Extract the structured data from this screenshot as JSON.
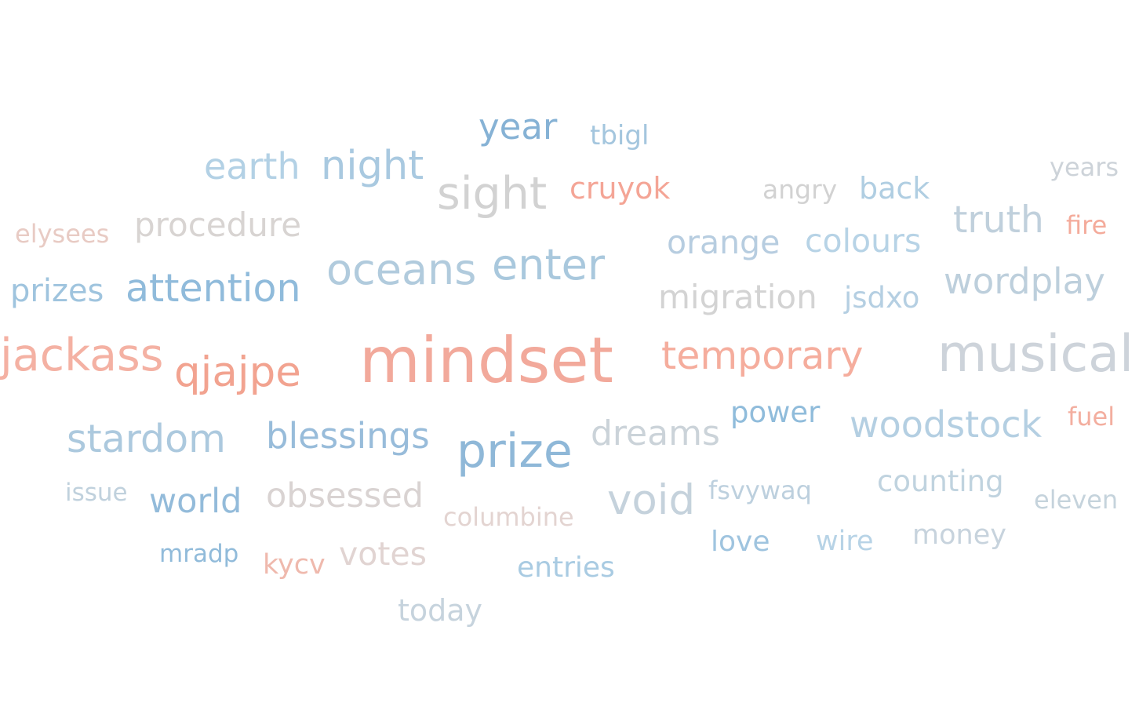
{
  "chart_data": {
    "type": "wordcloud",
    "title": "",
    "words": [
      {
        "text": "mindset",
        "weight": 100,
        "color": "#f2a99b"
      },
      {
        "text": "musical",
        "weight": 82,
        "color": "#cdd3da"
      },
      {
        "text": "prize",
        "weight": 75,
        "color": "#8fb8d8"
      },
      {
        "text": "sight",
        "weight": 72,
        "color": "#d2d2d2"
      },
      {
        "text": "jackass",
        "weight": 72,
        "color": "#f4b1a3"
      },
      {
        "text": "oceans",
        "weight": 68,
        "color": "#b1cbdd"
      },
      {
        "text": "enter",
        "weight": 68,
        "color": "#a9c8dd"
      },
      {
        "text": "void",
        "weight": 66,
        "color": "#c5d2dc"
      },
      {
        "text": "qjajpe",
        "weight": 66,
        "color": "#f2a390"
      },
      {
        "text": "night",
        "weight": 64,
        "color": "#a9c9e0"
      },
      {
        "text": "attention",
        "weight": 62,
        "color": "#90bbdb"
      },
      {
        "text": "stardom",
        "weight": 61,
        "color": "#acc9de"
      },
      {
        "text": "temporary",
        "weight": 61,
        "color": "#f5ad9d"
      },
      {
        "text": "truth",
        "weight": 59,
        "color": "#c0d0dc"
      },
      {
        "text": "earth",
        "weight": 58,
        "color": "#b3d1e5"
      },
      {
        "text": "woodstock",
        "weight": 58,
        "color": "#b4cfe2"
      },
      {
        "text": "wordplay",
        "weight": 57,
        "color": "#bdcfdc"
      },
      {
        "text": "year",
        "weight": 56,
        "color": "#86b2d5"
      },
      {
        "text": "blessings",
        "weight": 56,
        "color": "#98bcda"
      },
      {
        "text": "dreams",
        "weight": 55,
        "color": "#cbd3d9"
      },
      {
        "text": "world",
        "weight": 54,
        "color": "#93bbda"
      },
      {
        "text": "obsessed",
        "weight": 54,
        "color": "#d9d3d2"
      },
      {
        "text": "migration",
        "weight": 52,
        "color": "#d3d3d3"
      },
      {
        "text": "procedure",
        "weight": 52,
        "color": "#d8d4d2"
      },
      {
        "text": "orange",
        "weight": 51,
        "color": "#b7cde0"
      },
      {
        "text": "colours",
        "weight": 51,
        "color": "#b7d3e6"
      },
      {
        "text": "votes",
        "weight": 51,
        "color": "#e1d4d2"
      },
      {
        "text": "prizes",
        "weight": 50,
        "color": "#9fc4de"
      },
      {
        "text": "back",
        "weight": 48,
        "color": "#b0cee2"
      },
      {
        "text": "cruyok",
        "weight": 48,
        "color": "#f4a596"
      },
      {
        "text": "today",
        "weight": 47,
        "color": "#c6d3dd"
      },
      {
        "text": "power",
        "weight": 46,
        "color": "#90bcdb"
      },
      {
        "text": "counting",
        "weight": 46,
        "color": "#c0d3df"
      },
      {
        "text": "jsdxo",
        "weight": 46,
        "color": "#b5cfe2"
      },
      {
        "text": "love",
        "weight": 45,
        "color": "#9fc4df"
      },
      {
        "text": "entries",
        "weight": 45,
        "color": "#a9cbe2"
      },
      {
        "text": "money",
        "weight": 44,
        "color": "#c7d3dd"
      },
      {
        "text": "wire",
        "weight": 44,
        "color": "#b7d3e6"
      },
      {
        "text": "kycv",
        "weight": 43,
        "color": "#efb9ad"
      },
      {
        "text": "tbigl",
        "weight": 42,
        "color": "#a4c6de"
      },
      {
        "text": "angry",
        "weight": 41,
        "color": "#d2d2d2"
      },
      {
        "text": "years",
        "weight": 40,
        "color": "#cdd3d9"
      },
      {
        "text": "fire",
        "weight": 40,
        "color": "#f4ab9b"
      },
      {
        "text": "fuel",
        "weight": 40,
        "color": "#f3ae9f"
      },
      {
        "text": "elysees",
        "weight": 40,
        "color": "#e8cbc4"
      },
      {
        "text": "eleven",
        "weight": 40,
        "color": "#c5d3dc"
      },
      {
        "text": "columbine",
        "weight": 40,
        "color": "#e3d4d1"
      },
      {
        "text": "fsvywaq",
        "weight": 40,
        "color": "#bdd0de"
      },
      {
        "text": "issue",
        "weight": 39,
        "color": "#c0d1dd"
      },
      {
        "text": "mradp",
        "weight": 39,
        "color": "#91bbda"
      }
    ]
  }
}
